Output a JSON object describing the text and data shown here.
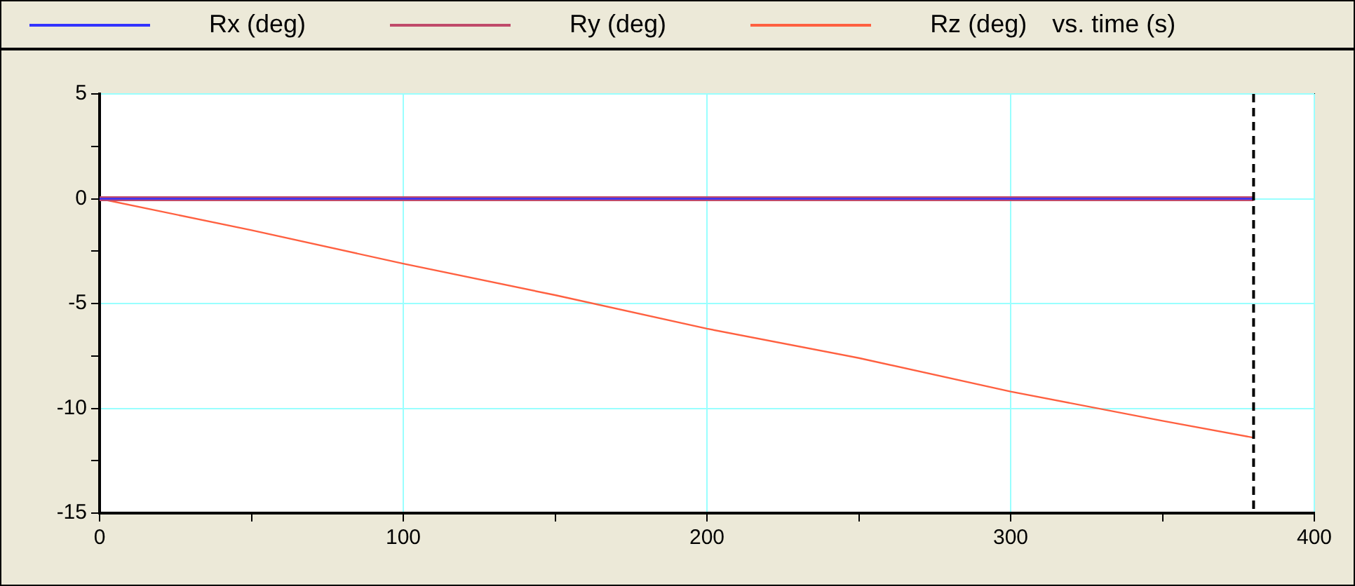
{
  "chart_data": {
    "type": "line",
    "xlabel": "vs. time (s)",
    "series": [
      {
        "name": "Rx (deg)",
        "color": "#3333ff",
        "x": [
          0,
          380
        ],
        "values": [
          0,
          0
        ]
      },
      {
        "name": "Ry (deg)",
        "color": "#c04a6a",
        "x": [
          0,
          380
        ],
        "values": [
          0,
          0
        ]
      },
      {
        "name": "Rz (deg)",
        "color": "#ff6040",
        "x": [
          0,
          50,
          100,
          150,
          200,
          250,
          300,
          350,
          380
        ],
        "values": [
          0,
          -1.5,
          -3.1,
          -4.6,
          -6.2,
          -7.6,
          -9.2,
          -10.6,
          -11.4
        ]
      }
    ],
    "xlim": [
      0,
      400
    ],
    "xticks": [
      0,
      {
        "value": 50,
        "label": null
      },
      100,
      {
        "value": 150,
        "label": null
      },
      200,
      {
        "value": 250,
        "label": null
      },
      300,
      {
        "value": 350,
        "label": null
      },
      400
    ],
    "ylim": [
      -15,
      5
    ],
    "yticks": [
      -15,
      {
        "value": -12.5,
        "label": null
      },
      -10,
      {
        "value": -7.5,
        "label": null
      },
      -5,
      {
        "value": -2.5,
        "label": null
      },
      0,
      {
        "value": 2.5,
        "label": null
      },
      5
    ],
    "grid": true,
    "legend": "top",
    "marker": "none",
    "line_style": "solid",
    "ref_lines": [
      {
        "axis": "x",
        "value": 380,
        "color": "#000000",
        "line_style": "dashed"
      }
    ]
  }
}
